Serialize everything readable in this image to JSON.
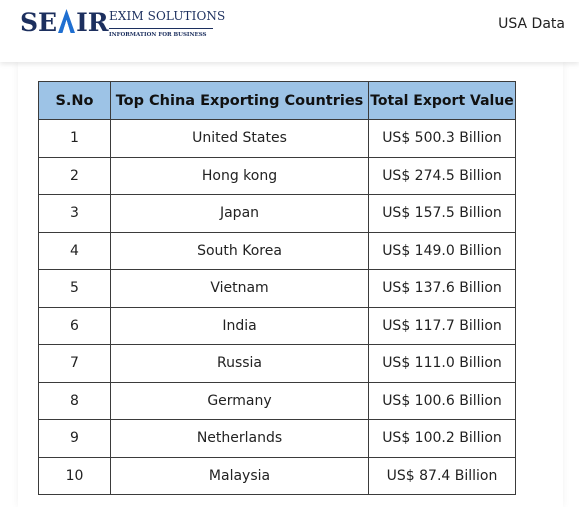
{
  "header": {
    "logo": {
      "mark": "SEAIR",
      "line1": "EXIM SOLUTIONS",
      "line2": "INFORMATION FOR BUSINESS"
    },
    "nav_link": "USA Data"
  },
  "table": {
    "headers": [
      "S.No",
      "Top China Exporting Countries",
      "Total Export Value"
    ],
    "rows": [
      {
        "sno": "1",
        "country": "United States",
        "value": "US$ 500.3 Billion"
      },
      {
        "sno": "2",
        "country": "Hong kong",
        "value": "US$ 274.5 Billion"
      },
      {
        "sno": "3",
        "country": "Japan",
        "value": "US$ 157.5 Billion"
      },
      {
        "sno": "4",
        "country": "South Korea",
        "value": "US$ 149.0 Billion"
      },
      {
        "sno": "5",
        "country": "Vietnam",
        "value": "US$ 137.6 Billion"
      },
      {
        "sno": "6",
        "country": "India",
        "value": "US$ 117.7 Billion"
      },
      {
        "sno": "7",
        "country": "Russia",
        "value": "US$ 111.0 Billion"
      },
      {
        "sno": "8",
        "country": "Germany",
        "value": "US$ 100.6 Billion"
      },
      {
        "sno": "9",
        "country": "Netherlands",
        "value": "US$ 100.2 Billion"
      },
      {
        "sno": "10",
        "country": "Malaysia",
        "value": "US$ 87.4 Billion"
      }
    ]
  },
  "colors": {
    "header_fill": "#9dc3e6",
    "brand_navy": "#1c2f5e",
    "brand_blue": "#1f6fd1",
    "border": "#3b3b3b"
  }
}
